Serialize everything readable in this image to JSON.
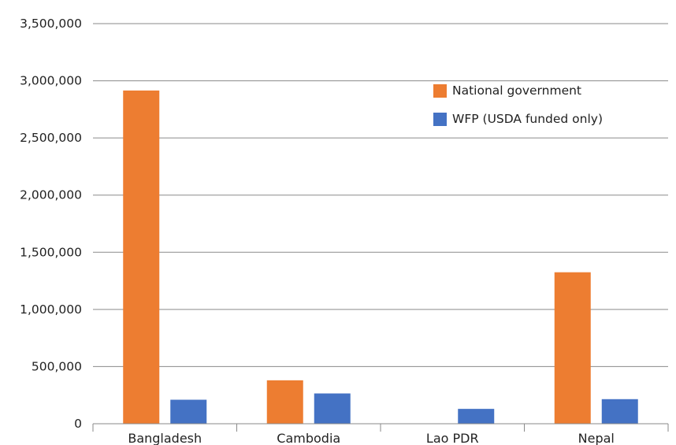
{
  "chart_data": {
    "type": "bar",
    "categories": [
      "Bangladesh",
      "Cambodia",
      "Lao PDR",
      "Nepal"
    ],
    "series": [
      {
        "name": "National government",
        "values": [
          2915000,
          380000,
          0,
          1325000
        ],
        "color": "#ED7D31"
      },
      {
        "name": "WFP (USDA funded only)",
        "values": [
          210000,
          265000,
          130000,
          215000
        ],
        "color": "#4472C4"
      }
    ],
    "y_ticks": [
      "0",
      "500,000",
      "1,000,000",
      "1,500,000",
      "2,000,000",
      "2,500,000",
      "3,000,000",
      "3,500,000"
    ],
    "ylim": [
      0,
      3500000
    ],
    "grid": true,
    "legend_position": "top-right"
  }
}
